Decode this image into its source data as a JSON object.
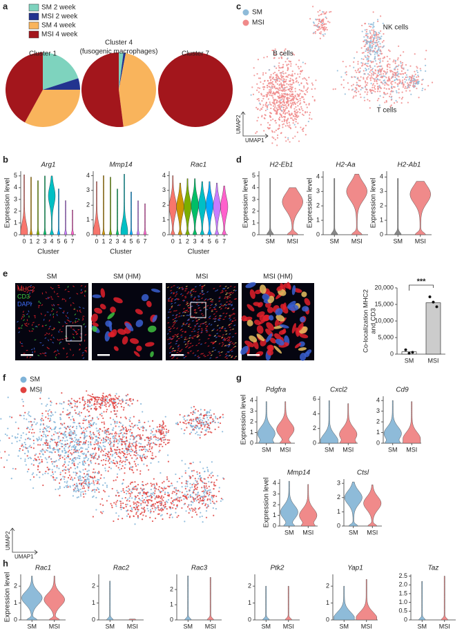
{
  "panel_labels": [
    "a",
    "b",
    "c",
    "d",
    "e",
    "f",
    "g",
    "h"
  ],
  "micrographs": {
    "titles": [
      "SM",
      "SM (HM)",
      "MSI",
      "MSI (HM)"
    ],
    "stains": [
      "MHC2",
      "CD3",
      "DAPI"
    ]
  },
  "chart_data": [
    {
      "type": "pie",
      "title": "Cluster 1",
      "categories": [
        "SM 2 week",
        "MSI 2 week",
        "SM 4 week",
        "MSI 4 week"
      ],
      "colors": [
        "#7ED3BE",
        "#22338F",
        "#F9B45C",
        "#A3161C"
      ],
      "values": [
        20,
        5,
        33,
        42
      ]
    },
    {
      "type": "pie",
      "title": "Cluster 4",
      "subtitle": "(fusogenic macrophages)",
      "values": [
        2,
        1,
        45,
        52
      ]
    },
    {
      "type": "pie",
      "title": "Cluster 7",
      "values": [
        0,
        0,
        0,
        100
      ]
    },
    {
      "type": "umap",
      "series": [
        {
          "name": "SM",
          "color": "#8EBBD9"
        },
        {
          "name": "MSI",
          "color": "#F08A8A"
        }
      ],
      "annotations": [
        "B cells",
        "NK cells",
        "T cells"
      ],
      "xlabel": "UMAP1",
      "ylabel": "UMAP2"
    },
    {
      "type": "violin",
      "title": "Arg1",
      "ylabel": "Expression level",
      "xlabel": "Cluster",
      "categories": [
        "0",
        "1",
        "2",
        "3",
        "4",
        "5",
        "6",
        "7"
      ],
      "colors": [
        "#F8766D",
        "#CD9600",
        "#7CAE00",
        "#00BE67",
        "#00BFC4",
        "#00A9FF",
        "#C77CFF",
        "#FF61CC"
      ],
      "values": [
        5.1,
        4.9,
        4.6,
        5.0,
        5.0,
        3.9,
        2.9,
        2.1
      ],
      "modes": [
        0.2,
        null,
        null,
        null,
        3.3,
        null,
        null,
        null
      ],
      "ylim": [
        0,
        5.4
      ],
      "yticks": [
        0,
        1,
        2,
        3,
        4,
        5
      ]
    },
    {
      "type": "violin",
      "title": "Mmp14",
      "xlabel": "Cluster",
      "categories": [
        "0",
        "1",
        "2",
        "3",
        "4",
        "5",
        "6",
        "7"
      ],
      "colors": [
        "#F8766D",
        "#CD9600",
        "#7CAE00",
        "#00BE67",
        "#00BFC4",
        "#00A9FF",
        "#C77CFF",
        "#FF61CC"
      ],
      "values": [
        3.6,
        4.0,
        3.9,
        3.1,
        4.1,
        2.9,
        2.3,
        2.1
      ],
      "modes": [
        0.1,
        null,
        null,
        null,
        0.2,
        null,
        null,
        null
      ],
      "ylim": [
        0,
        4.3
      ],
      "yticks": [
        0,
        1,
        2,
        3,
        4
      ]
    },
    {
      "type": "violin",
      "title": "Rac1",
      "xlabel": "Cluster",
      "categories": [
        "0",
        "1",
        "2",
        "3",
        "4",
        "5",
        "6",
        "7"
      ],
      "colors": [
        "#F8766D",
        "#CD9600",
        "#7CAE00",
        "#00BE67",
        "#00BFC4",
        "#00A9FF",
        "#C77CFF",
        "#FF61CC"
      ],
      "values": [
        4.0,
        3.5,
        3.8,
        3.8,
        3.6,
        3.6,
        3.5,
        3.3
      ],
      "modes": [
        1.9,
        1.9,
        1.9,
        2.0,
        2.0,
        2.0,
        1.9,
        1.9
      ],
      "ylim": [
        0,
        4.3
      ],
      "yticks": [
        0,
        1,
        2,
        3,
        4
      ]
    },
    {
      "type": "violin",
      "title": "H2-Eb1",
      "ylabel": "Expression level",
      "categories": [
        "SM",
        "MSI"
      ],
      "colors": [
        "#888888",
        "#F08A8A"
      ],
      "values": [
        4.8,
        4.0
      ],
      "modes": [
        null,
        2.8
      ],
      "ylim": [
        0,
        5.4
      ],
      "yticks": [
        0,
        1,
        2,
        3,
        4,
        5
      ]
    },
    {
      "type": "violin",
      "title": "H2-Aa",
      "ylabel": "Expression level",
      "categories": [
        "SM",
        "MSI"
      ],
      "colors": [
        "#888888",
        "#F08A8A"
      ],
      "values": [
        3.9,
        4.2
      ],
      "modes": [
        null,
        3.0
      ],
      "ylim": [
        0,
        4.4
      ],
      "yticks": [
        0,
        1,
        2,
        3,
        4
      ]
    },
    {
      "type": "violin",
      "title": "H2-Ab1",
      "ylabel": "Expression level",
      "categories": [
        "SM",
        "MSI"
      ],
      "colors": [
        "#888888",
        "#F08A8A"
      ],
      "values": [
        3.9,
        3.7
      ],
      "modes": [
        null,
        2.8
      ],
      "ylim": [
        0,
        4.4
      ],
      "yticks": [
        0,
        1,
        2,
        3,
        4
      ]
    },
    {
      "type": "bar",
      "ylabel": [
        "Co-localization MHC2",
        "and CD3"
      ],
      "categories": [
        "SM",
        "MSI"
      ],
      "colors": [
        "#ffffff",
        "#cccccc"
      ],
      "values": [
        700,
        15500
      ],
      "points": [
        [
          1300,
          250,
          550
        ],
        [
          17300,
          15700,
          14300
        ]
      ],
      "annotation": "***",
      "ylim": [
        0,
        20000
      ],
      "yticks": [
        0,
        {
          "value": 5000,
          "label": "5,000"
        },
        {
          "value": 10000,
          "label": "10,000"
        },
        {
          "value": 15000,
          "label": "15,000"
        },
        {
          "value": 20000,
          "label": "20,000"
        }
      ]
    },
    {
      "type": "umap",
      "series": [
        {
          "name": "SM",
          "color": "#7FB3D8"
        },
        {
          "name": "MSI",
          "color": "#E0423F"
        }
      ],
      "xlabel": "UMAP1",
      "ylabel": "UMAP2"
    },
    {
      "type": "violin",
      "title": "Pdgfra",
      "ylabel": "Expression level",
      "categories": [
        "SM",
        "MSI"
      ],
      "colors": [
        "#8EBBD9",
        "#F08A8A"
      ],
      "values": [
        3.9,
        3.9
      ],
      "modes": [
        0.9,
        1.3
      ],
      "ylim": [
        0,
        4.4
      ],
      "yticks": [
        0,
        1,
        2,
        3,
        4
      ]
    },
    {
      "type": "violin",
      "title": "Cxcl2",
      "categories": [
        "SM",
        "MSI"
      ],
      "colors": [
        "#8EBBD9",
        "#F08A8A"
      ],
      "values": [
        5.8,
        5.4
      ],
      "modes": [
        0.3,
        1.2
      ],
      "ylim": [
        0,
        6.4
      ],
      "yticks": [
        0,
        2,
        4,
        6
      ]
    },
    {
      "type": "violin",
      "title": "Cd9",
      "categories": [
        "SM",
        "MSI"
      ],
      "colors": [
        "#8EBBD9",
        "#F08A8A"
      ],
      "values": [
        4.0,
        3.9
      ],
      "modes": [
        0.9,
        0.4
      ],
      "ylim": [
        0,
        4.4
      ],
      "yticks": [
        0,
        1,
        2,
        3,
        4
      ]
    },
    {
      "type": "violin",
      "title": "Mmp14",
      "ylabel": "Expression level",
      "categories": [
        "SM",
        "MSI"
      ],
      "colors": [
        "#8EBBD9",
        "#F08A8A"
      ],
      "values": [
        4.2,
        3.9
      ],
      "modes": [
        1.3,
        1.0
      ],
      "ylim": [
        0,
        4.4
      ],
      "yticks": [
        0,
        1,
        2,
        3,
        4
      ]
    },
    {
      "type": "violin",
      "title": "Ctsl",
      "categories": [
        "SM",
        "MSI"
      ],
      "colors": [
        "#8EBBD9",
        "#F08A8A"
      ],
      "values": [
        3.1,
        2.9
      ],
      "modes": [
        2.0,
        1.6
      ],
      "ylim": [
        0,
        3.3
      ],
      "yticks": [
        0,
        1,
        2,
        3
      ]
    },
    {
      "type": "violin",
      "title": "Rac1",
      "ylabel": "Expression level",
      "categories": [
        "SM",
        "MSI"
      ],
      "colors": [
        "#8EBBD9",
        "#F08A8A"
      ],
      "values": [
        2.6,
        2.6
      ],
      "modes": [
        1.3,
        1.2
      ],
      "ylim": [
        0,
        2.7
      ],
      "yticks": [
        0,
        1,
        2
      ]
    },
    {
      "type": "violin",
      "title": "Rac2",
      "categories": [
        "SM",
        "MSI"
      ],
      "colors": [
        "#8EBBD9",
        "#F08A8A"
      ],
      "values": [
        2.3,
        0.05
      ],
      "modes": [
        null,
        null
      ],
      "ylim": [
        0,
        2.7
      ],
      "yticks": [
        0,
        1,
        2
      ]
    },
    {
      "type": "violin",
      "title": "Rac3",
      "categories": [
        "SM",
        "MSI"
      ],
      "colors": [
        "#8EBBD9",
        "#F08A8A"
      ],
      "values": [
        2.9,
        2.8
      ],
      "modes": [
        null,
        null
      ],
      "ylim": [
        0,
        3.0
      ],
      "yticks": [
        0,
        1,
        2
      ]
    },
    {
      "type": "violin",
      "title": "Ptk2",
      "categories": [
        "SM",
        "MSI"
      ],
      "colors": [
        "#8EBBD9",
        "#F08A8A"
      ],
      "values": [
        2.0,
        2.0
      ],
      "modes": [
        null,
        null
      ],
      "ylim": [
        0,
        2.7
      ],
      "yticks": [
        0,
        1,
        2
      ]
    },
    {
      "type": "violin",
      "title": "Yap1",
      "categories": [
        "SM",
        "MSI"
      ],
      "colors": [
        "#8EBBD9",
        "#F08A8A"
      ],
      "values": [
        2.0,
        2.4
      ],
      "modes": [
        0.1,
        0.1
      ],
      "ylim": [
        0,
        2.7
      ],
      "yticks": [
        0,
        1,
        2
      ]
    },
    {
      "type": "violin",
      "title": "Taz",
      "categories": [
        "SM",
        "MSI"
      ],
      "colors": [
        "#8EBBD9",
        "#F08A8A"
      ],
      "values": [
        2.2,
        2.5
      ],
      "modes": [
        null,
        null
      ],
      "ylim": [
        0,
        2.6
      ],
      "yticks": [
        0,
        0.5,
        {
          "value": 1,
          "label": "1.0"
        },
        1.5,
        {
          "value": 2,
          "label": "2.0"
        },
        2.5
      ]
    }
  ]
}
